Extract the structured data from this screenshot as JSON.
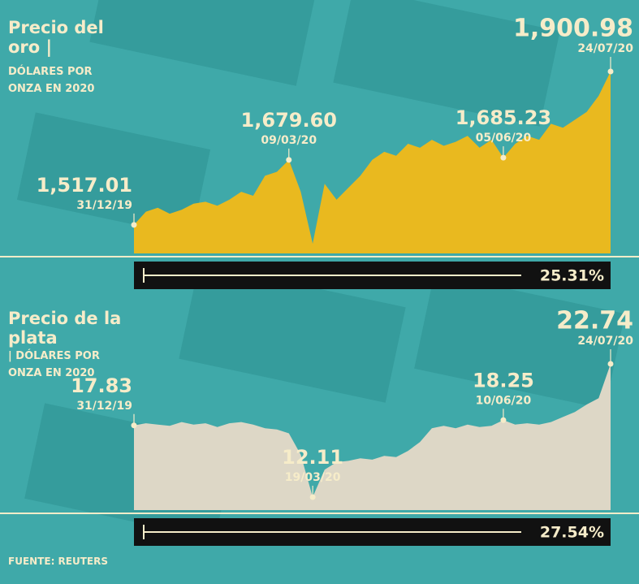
{
  "source": "FUENTE: REUTERS",
  "chart_data": [
    {
      "type": "area",
      "title": "Precio del oro |",
      "subtitle": "DÓLARES POR ONZA EN 2020",
      "color": "#e9b91f",
      "categories": [
        "31/12/19",
        null,
        null,
        null,
        null,
        null,
        null,
        null,
        null,
        null,
        null,
        null,
        null,
        "09/03/20",
        null,
        null,
        null,
        null,
        null,
        null,
        null,
        null,
        null,
        null,
        null,
        null,
        null,
        null,
        null,
        null,
        null,
        "05/06/20",
        null,
        null,
        null,
        null,
        null,
        null,
        null,
        null,
        "24/07/20"
      ],
      "values": [
        1517.01,
        1550,
        1560,
        1545,
        1555,
        1570,
        1575,
        1565,
        1580,
        1600,
        1590,
        1640,
        1650,
        1679.6,
        1600,
        1470,
        1620,
        1580,
        1610,
        1640,
        1680,
        1700,
        1690,
        1720,
        1710,
        1730,
        1715,
        1725,
        1740,
        1710,
        1730,
        1685.23,
        1720,
        1740,
        1730,
        1770,
        1760,
        1780,
        1800,
        1840,
        1900.98
      ],
      "value_labels": [
        "1,517.01",
        null,
        null,
        null,
        null,
        null,
        null,
        null,
        null,
        null,
        null,
        null,
        null,
        "1,679.60",
        null,
        null,
        null,
        null,
        null,
        null,
        null,
        null,
        null,
        null,
        null,
        null,
        null,
        null,
        null,
        null,
        null,
        "1,685.23",
        null,
        null,
        null,
        null,
        null,
        null,
        null,
        null,
        "1,900.98"
      ],
      "change": {
        "value": 25.31,
        "label": "25.31%"
      }
    },
    {
      "type": "area",
      "title": "Precio de la plata",
      "subtitle": "| DÓLARES POR ONZA EN 2020",
      "color": "#ddd7c6",
      "categories": [
        "31/12/19",
        null,
        null,
        null,
        null,
        null,
        null,
        null,
        null,
        null,
        null,
        null,
        null,
        null,
        null,
        "19/03/20",
        null,
        null,
        null,
        null,
        null,
        null,
        null,
        null,
        null,
        null,
        null,
        null,
        null,
        null,
        null,
        "10/06/20",
        null,
        null,
        null,
        null,
        null,
        null,
        null,
        null,
        "24/07/20"
      ],
      "values": [
        17.83,
        18.0,
        17.9,
        17.8,
        18.1,
        17.9,
        18.0,
        17.7,
        18.0,
        18.1,
        17.9,
        17.6,
        17.5,
        17.2,
        15.5,
        12.11,
        14.3,
        14.9,
        15.0,
        15.2,
        15.1,
        15.4,
        15.3,
        15.8,
        16.5,
        17.6,
        17.8,
        17.6,
        17.9,
        17.7,
        17.8,
        18.25,
        17.9,
        18.0,
        17.9,
        18.1,
        18.5,
        18.9,
        19.5,
        20.0,
        22.74
      ],
      "value_labels": [
        "17.83",
        null,
        null,
        null,
        null,
        null,
        null,
        null,
        null,
        null,
        null,
        null,
        null,
        null,
        null,
        "12.11",
        null,
        null,
        null,
        null,
        null,
        null,
        null,
        null,
        null,
        null,
        null,
        null,
        null,
        null,
        null,
        "18.25",
        null,
        null,
        null,
        null,
        null,
        null,
        null,
        null,
        "22.74"
      ],
      "change": {
        "value": 27.54,
        "label": "27.54%"
      }
    }
  ]
}
